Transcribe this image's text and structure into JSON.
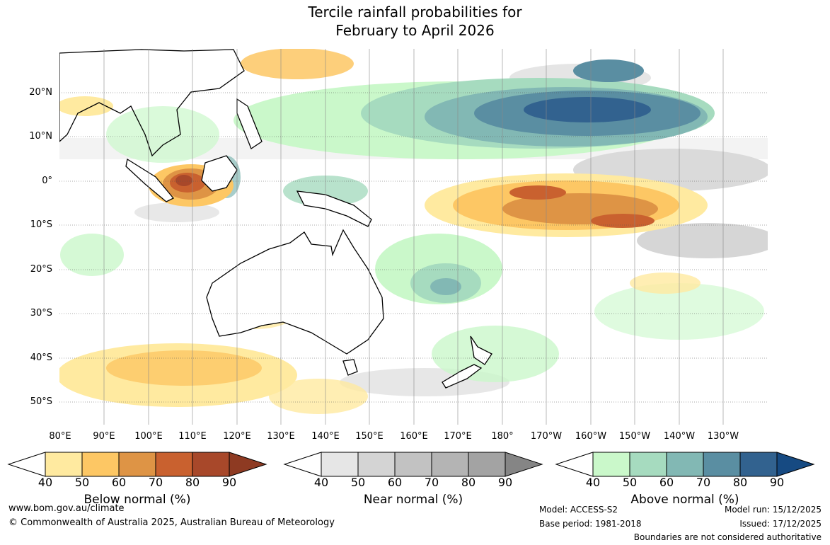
{
  "title": {
    "line1": "Tercile rainfall probabilities for",
    "line2": "February to April 2026"
  },
  "map": {
    "lat_labels": [
      "20°N",
      "10°N",
      "0°",
      "10°S",
      "20°S",
      "30°S",
      "40°S",
      "50°S"
    ],
    "lon_labels": [
      "80°E",
      "90°E",
      "100°E",
      "110°E",
      "120°E",
      "130°E",
      "140°E",
      "150°E",
      "160°E",
      "170°E",
      "180°",
      "170°W",
      "160°W",
      "150°W",
      "140°W",
      "130°W"
    ]
  },
  "colorbars": [
    {
      "title": "Below normal (%)",
      "ticks": [
        "40",
        "50",
        "60",
        "70",
        "80",
        "90"
      ],
      "colors": [
        "#ffffff",
        "#ffeaa0",
        "#fdc764",
        "#de9445",
        "#c9612f",
        "#a8482a",
        "#8e3a22"
      ]
    },
    {
      "title": "Near normal (%)",
      "ticks": [
        "40",
        "50",
        "60",
        "70",
        "80",
        "90"
      ],
      "colors": [
        "#ffffff",
        "#e6e6e6",
        "#d4d4d4",
        "#c2c2c2",
        "#b4b4b4",
        "#a3a3a3",
        "#858585"
      ]
    },
    {
      "title": "Above normal (%)",
      "ticks": [
        "40",
        "50",
        "60",
        "70",
        "80",
        "90"
      ],
      "colors": [
        "#ffffff",
        "#caf8ca",
        "#a6dbbf",
        "#82b8b4",
        "#5a8ea2",
        "#32628f",
        "#164a82"
      ]
    }
  ],
  "footer": {
    "website": "www.bom.gov.au/climate",
    "copyright": "© Commonwealth of Australia 2025, Australian Bureau of Meteorology",
    "model": "Model: ACCESS-S2",
    "base_period": "Base period: 1981-2018",
    "model_run": "Model run: 15/12/2025",
    "issued": "Issued: 17/12/2025",
    "disclaimer": "Boundaries are not considered authoritative"
  }
}
